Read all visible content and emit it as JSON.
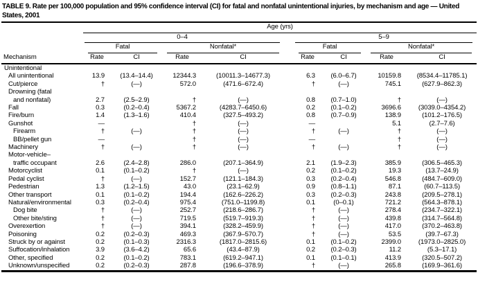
{
  "title": "TABLE 9. Rate per 100,000 population and 95% confidence interval (CI) for fatal and nonfatal unintentional injuries, by mechanism and age — United States, 2001",
  "table": {
    "age_header": "Age (yrs)",
    "age_ranges": [
      "0–4",
      "5–9"
    ],
    "outcome_headers": [
      "Fatal",
      "Nonfatal*",
      "Fatal",
      "Nonfatal*"
    ],
    "measure_headers": [
      "Rate",
      "CI",
      "Rate",
      "CI",
      "Rate",
      "CI",
      "Rate",
      "CI"
    ],
    "mechanism_header": "Mechanism",
    "rows": [
      {
        "label": "Unintentional",
        "indent": 0,
        "cells": [
          "",
          "",
          "",
          "",
          "",
          "",
          "",
          ""
        ]
      },
      {
        "label": "All unintentional",
        "indent": 1,
        "cells": [
          "13.9",
          "(13.4–14.4)",
          "12344.3",
          "(10011.3–14677.3)",
          "6.3",
          "(6.0–6.7)",
          "10159.8",
          "(8534.4–11785.1)"
        ]
      },
      {
        "label": "Cut/pierce",
        "indent": 1,
        "cells": [
          "†",
          "(—)",
          "572.0",
          "(471.6–672.4)",
          "†",
          "(—)",
          "745.1",
          "(627.9–862.3)"
        ]
      },
      {
        "label": "Drowning (fatal",
        "indent": 1,
        "cells": [
          "",
          "",
          "",
          "",
          "",
          "",
          "",
          ""
        ]
      },
      {
        "label": "and nonfatal)",
        "indent": 2,
        "cells": [
          "2.7",
          "(2.5–2.9)",
          "†",
          "(—)",
          "0.8",
          "(0.7–1.0)",
          "†",
          "(—)"
        ]
      },
      {
        "label": "Fall",
        "indent": 1,
        "cells": [
          "0.3",
          "(0.2–0.4)",
          "5367.2",
          "(4283.7–6450.6)",
          "0.2",
          "(0.1–0.2)",
          "3696.6",
          "(3039.0–4354.2)"
        ]
      },
      {
        "label": "Fire/burn",
        "indent": 1,
        "cells": [
          "1.4",
          "(1.3–1.6)",
          "410.4",
          "(327.5–493.2)",
          "0.8",
          "(0.7–0.9)",
          "138.9",
          "(101.2–176.5)"
        ]
      },
      {
        "label": "Gunshot",
        "indent": 1,
        "cells": [
          "—",
          "",
          "†",
          "(—)",
          "—",
          "",
          "5.1",
          "(2.7–7.6)"
        ]
      },
      {
        "label": "Firearm",
        "indent": 2,
        "cells": [
          "†",
          "(—)",
          "†",
          "(—)",
          "†",
          "(—)",
          "†",
          "(—)"
        ]
      },
      {
        "label": "BB/pellet gun",
        "indent": 2,
        "cells": [
          "—",
          "",
          "†",
          "(—)",
          "—",
          "",
          "†",
          "(—)"
        ]
      },
      {
        "label": "Machinery",
        "indent": 1,
        "cells": [
          "†",
          "(—)",
          "†",
          "(—)",
          "†",
          "(—)",
          "†",
          "(—)"
        ]
      },
      {
        "label": "Motor-vehicle–",
        "indent": 1,
        "cells": [
          "",
          "",
          "",
          "",
          "",
          "",
          "",
          ""
        ]
      },
      {
        "label": "traffic occupant",
        "indent": 2,
        "cells": [
          "2.6",
          "(2.4–2.8)",
          "286.0",
          "(207.1–364.9)",
          "2.1",
          "(1.9–2.3)",
          "385.9",
          "(306.5–465.3)"
        ]
      },
      {
        "label": "Motorcyclist",
        "indent": 1,
        "cells": [
          "0.1",
          "(0.1–0.2)",
          "†",
          "(—)",
          "0.2",
          "(0.1–0.2)",
          "19.3",
          "(13.7–24.9)"
        ]
      },
      {
        "label": "Pedal cyclist",
        "indent": 1,
        "cells": [
          "†",
          "(—)",
          "152.7",
          "(121.1–184.3)",
          "0.3",
          "(0.2–0.4)",
          "546.8",
          "(484.7–609.0)"
        ]
      },
      {
        "label": "Pedestrian",
        "indent": 1,
        "cells": [
          "1.3",
          "(1.2–1.5)",
          "43.0",
          "(23.1–62.9)",
          "0.9",
          "(0.8–1.1)",
          "87.1",
          "(60.7–113.5)"
        ]
      },
      {
        "label": "Other transport",
        "indent": 1,
        "cells": [
          "0.1",
          "(0.1–0.2)",
          "194.4",
          "(162.6–226.2)",
          "0.3",
          "(0.2–0.3)",
          "243.8",
          "(209.5–278.1)"
        ]
      },
      {
        "label": "Natural/environmental",
        "indent": 1,
        "cells": [
          "0.3",
          "(0.2–0.4)",
          "975.4",
          "(751.0–1199.8)",
          "0.1",
          "(0–0.1)",
          "721.2",
          "(564.3–878.1)"
        ]
      },
      {
        "label": "Dog bite",
        "indent": 2,
        "cells": [
          "†",
          "(—)",
          "252.7",
          "(218.6–286.7)",
          "†",
          "(—)",
          "278.4",
          "(234.7–322.1)"
        ]
      },
      {
        "label": "Other bite/sting",
        "indent": 2,
        "cells": [
          "†",
          "(—)",
          "719.5",
          "(519.7–919.3)",
          "†",
          "(—)",
          "439.8",
          "(314.7–564.8)"
        ]
      },
      {
        "label": "Overexertion",
        "indent": 1,
        "cells": [
          "†",
          "(—)",
          "394.1",
          "(328.2–459.9)",
          "†",
          "(—)",
          "417.0",
          "(370.2–463.8)"
        ]
      },
      {
        "label": "Poisoning",
        "indent": 1,
        "cells": [
          "0.2",
          "(0.2–0.3)",
          "469.3",
          "(367.9–570.7)",
          "†",
          "(—)",
          "53.5",
          "(39.7–67.3)"
        ]
      },
      {
        "label": "Struck by or against",
        "indent": 1,
        "cells": [
          "0.2",
          "(0.1–0.3)",
          "2316.3",
          "(1817.0–2815.6)",
          "0.1",
          "(0.1–0.2)",
          "2399.0",
          "(1973.0–2825.0)"
        ]
      },
      {
        "label": "Suffocation/inhalation",
        "indent": 1,
        "cells": [
          "3.9",
          "(3.6–4.2)",
          "65.6",
          "(43.4–87.9)",
          "0.2",
          "(0.2–0.3)",
          "11.2",
          "(5.3–17.1)"
        ]
      },
      {
        "label": "Other, specified",
        "indent": 1,
        "cells": [
          "0.2",
          "(0.1–0.2)",
          "783.1",
          "(619.2–947.1)",
          "0.1",
          "(0.1–0.1)",
          "413.9",
          "(320.5–507.2)"
        ]
      },
      {
        "label": "Unknown/unspecified",
        "indent": 1,
        "cells": [
          "0.2",
          "(0.2–0.3)",
          "287.8",
          "(196.6–378.9)",
          "†",
          "(—)",
          "265.8",
          "(169.9–361.6)"
        ]
      }
    ]
  }
}
